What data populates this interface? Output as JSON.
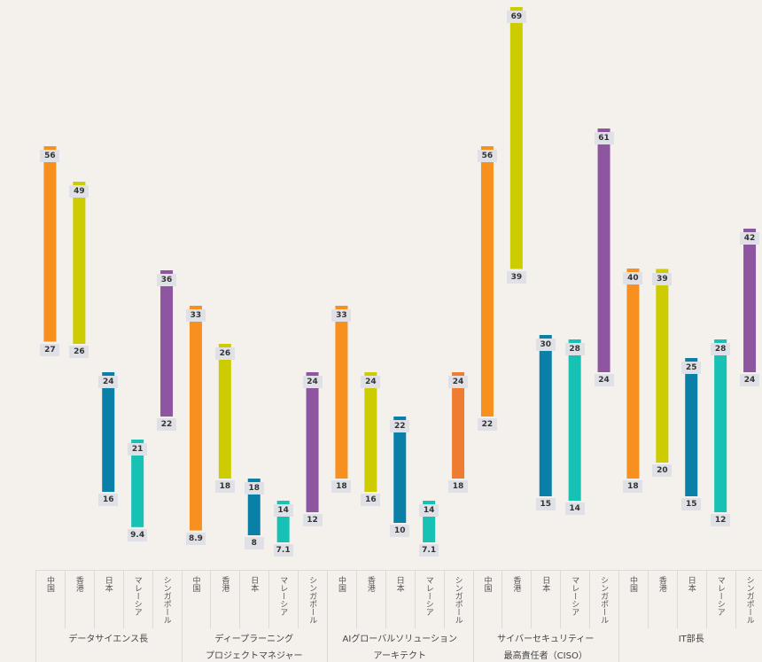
{
  "chart_data": {
    "type": "floating-bar",
    "countries": [
      "中国",
      "香港",
      "日本",
      "マレーシア",
      "シンガポール"
    ],
    "groups": [
      {
        "name_lines": [
          "データサイエンス長"
        ],
        "ranges": [
          [
            27,
            56
          ],
          [
            26,
            49
          ],
          [
            16,
            24
          ],
          [
            9.4,
            21
          ],
          [
            22,
            36
          ]
        ]
      },
      {
        "name_lines": [
          "ディープラーニング",
          "プロジェクトマネジャー"
        ],
        "ranges": [
          [
            8.9,
            33
          ],
          [
            18,
            26
          ],
          [
            8,
            18
          ],
          [
            7.1,
            14
          ],
          [
            12,
            24
          ]
        ]
      },
      {
        "name_lines": [
          "AIグローバルソリューション",
          "アーキテクト"
        ],
        "ranges": [
          [
            18,
            33
          ],
          [
            16,
            24
          ],
          [
            10,
            22
          ],
          [
            7.1,
            14
          ],
          [
            18,
            24
          ]
        ]
      },
      {
        "name_lines": [
          "サイバーセキュリティー",
          "最高責任者（CISO）"
        ],
        "ranges": [
          [
            22,
            56
          ],
          [
            39,
            69
          ],
          [
            15,
            30
          ],
          [
            14,
            28
          ],
          [
            24,
            61
          ]
        ]
      },
      {
        "name_lines": [
          "IT部長"
        ],
        "ranges": [
          [
            18,
            40
          ],
          [
            20,
            39
          ],
          [
            15,
            25
          ],
          [
            12,
            28
          ],
          [
            24,
            42
          ]
        ]
      }
    ],
    "colors": [
      "#f7901e",
      "#cccc00",
      "#0a7fa8",
      "#17c1b4",
      "#8e55a0"
    ],
    "special_color": "#ef7d31"
  }
}
